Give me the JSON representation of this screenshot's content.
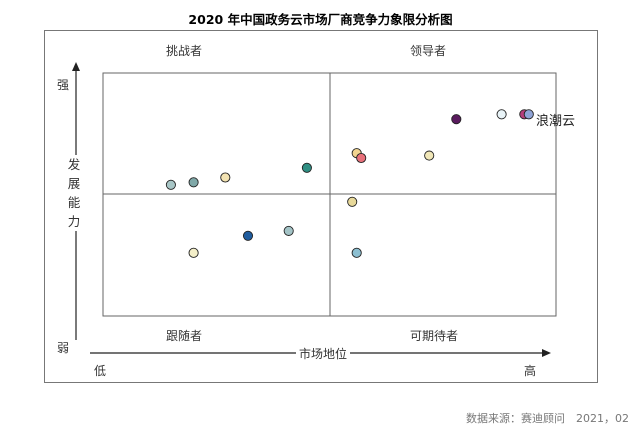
{
  "chart_data": {
    "type": "scatter",
    "title": "2020 年中国政务云市场厂商竞争力象限分析图",
    "xlabel": "市场地位",
    "ylabel_chars": [
      "发",
      "展",
      "能",
      "力"
    ],
    "x_low": "低",
    "x_high": "高",
    "y_high": "强",
    "y_low": "弱",
    "quadrants": {
      "top_left": "挑战者",
      "top_right": "领导者",
      "bottom_left": "跟随者",
      "bottom_right": "可期待者"
    },
    "xlim": [
      0,
      1
    ],
    "ylim": [
      0,
      1
    ],
    "grid": "quadrant dividers at 0.5",
    "highlight_label": "浪潮云",
    "points": [
      {
        "x": 0.15,
        "y": 0.54,
        "color": "#a8c6c6"
      },
      {
        "x": 0.2,
        "y": 0.55,
        "color": "#7fa8a8"
      },
      {
        "x": 0.27,
        "y": 0.57,
        "color": "#f3e3b2"
      },
      {
        "x": 0.45,
        "y": 0.61,
        "color": "#2f8f83"
      },
      {
        "x": 0.2,
        "y": 0.26,
        "color": "#f4efc9"
      },
      {
        "x": 0.32,
        "y": 0.33,
        "color": "#1f5c9e"
      },
      {
        "x": 0.41,
        "y": 0.35,
        "color": "#a3c3c6"
      },
      {
        "x": 0.55,
        "y": 0.47,
        "color": "#e8d99a"
      },
      {
        "x": 0.56,
        "y": 0.26,
        "color": "#8cbfd1"
      },
      {
        "x": 0.56,
        "y": 0.67,
        "color": "#f2d48f"
      },
      {
        "x": 0.57,
        "y": 0.65,
        "color": "#e8707a"
      },
      {
        "x": 0.72,
        "y": 0.66,
        "color": "#f1e7b8"
      },
      {
        "x": 0.78,
        "y": 0.81,
        "color": "#5a1b5e"
      },
      {
        "x": 0.88,
        "y": 0.83,
        "color": "#e9f4f8"
      },
      {
        "x": 0.93,
        "y": 0.83,
        "color": "#b53d7a"
      },
      {
        "x": 0.94,
        "y": 0.83,
        "color": "#8fa3d6"
      }
    ]
  },
  "source_text": "数据来源：赛迪顾问　2021，02"
}
